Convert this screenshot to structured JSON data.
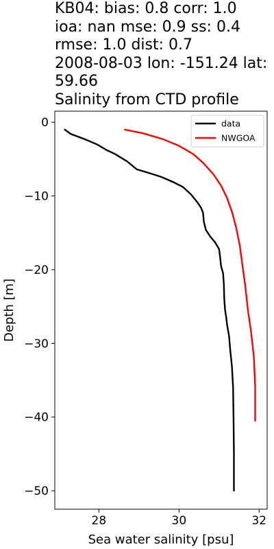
{
  "chart_data": {
    "type": "line",
    "title_lines": [
      "KB04: bias: 0.8  corr: 1.0",
      "ioa: nan  mse: 0.9  ss: 0.4",
      "rmse: 1.0  dist: 0.7",
      "2008-08-03 lon: -151.24 lat:",
      "59.66",
      "Salinity from CTD profile"
    ],
    "xlabel": "Sea water salinity [psu]",
    "ylabel": "Depth [m]",
    "xlim": [
      26.9,
      32.2
    ],
    "ylim": [
      -52.5,
      1.5
    ],
    "xticks": [
      28,
      30,
      32
    ],
    "yticks": [
      0,
      -10,
      -20,
      -30,
      -40,
      -50
    ],
    "grid": false,
    "legend_position": "top-right",
    "series": [
      {
        "name": "data",
        "color": "#000000",
        "points": [
          [
            27.15,
            -1.0
          ],
          [
            27.3,
            -1.6
          ],
          [
            27.6,
            -2.2
          ],
          [
            27.95,
            -3.0
          ],
          [
            28.2,
            -3.8
          ],
          [
            28.4,
            -4.3
          ],
          [
            28.7,
            -5.3
          ],
          [
            28.95,
            -6.4
          ],
          [
            29.2,
            -6.8
          ],
          [
            29.55,
            -7.4
          ],
          [
            29.85,
            -8.1
          ],
          [
            30.1,
            -8.8
          ],
          [
            30.3,
            -9.8
          ],
          [
            30.45,
            -10.8
          ],
          [
            30.55,
            -11.6
          ],
          [
            30.6,
            -12.3
          ],
          [
            30.62,
            -13.5
          ],
          [
            30.67,
            -14.6
          ],
          [
            30.78,
            -15.5
          ],
          [
            30.9,
            -16.3
          ],
          [
            31.0,
            -17.2
          ],
          [
            31.02,
            -18.0
          ],
          [
            31.05,
            -19.5
          ],
          [
            31.1,
            -20.5
          ],
          [
            31.12,
            -22.0
          ],
          [
            31.13,
            -24.0
          ],
          [
            31.15,
            -25.5
          ],
          [
            31.18,
            -26.5
          ],
          [
            31.2,
            -27.5
          ],
          [
            31.25,
            -29.0
          ],
          [
            31.28,
            -31.0
          ],
          [
            31.32,
            -33.0
          ],
          [
            31.35,
            -36.0
          ],
          [
            31.36,
            -40.0
          ],
          [
            31.37,
            -45.0
          ],
          [
            31.37,
            -49.0
          ],
          [
            31.37,
            -50.0
          ]
        ]
      },
      {
        "name": "NWGOA",
        "color": "#ff0000",
        "points": [
          [
            28.65,
            -1.0
          ],
          [
            29.1,
            -1.5
          ],
          [
            29.6,
            -2.3
          ],
          [
            30.0,
            -3.2
          ],
          [
            30.35,
            -4.3
          ],
          [
            30.6,
            -5.5
          ],
          [
            30.85,
            -7.0
          ],
          [
            31.05,
            -8.6
          ],
          [
            31.2,
            -10.3
          ],
          [
            31.33,
            -12.3
          ],
          [
            31.43,
            -14.4
          ],
          [
            31.52,
            -16.8
          ],
          [
            31.58,
            -19.3
          ],
          [
            31.65,
            -22.0
          ],
          [
            31.72,
            -25.5
          ],
          [
            31.8,
            -28.5
          ],
          [
            31.87,
            -32.0
          ],
          [
            31.9,
            -36.0
          ],
          [
            31.9,
            -40.5
          ]
        ]
      }
    ]
  }
}
